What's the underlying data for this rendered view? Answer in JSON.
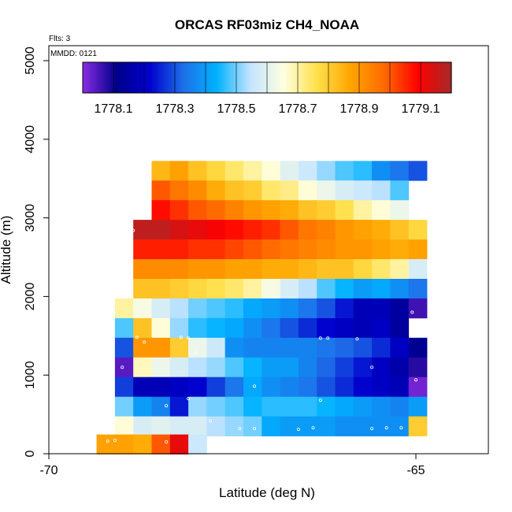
{
  "title": "ORCAS RF03miz CH4_NOAA",
  "flts_label": "Flts: 3",
  "mmdd_label": "MMDD: 0121",
  "chart_data": {
    "type": "heatmap",
    "title": "ORCAS RF03miz CH4_NOAA",
    "xlabel": "Latitude (deg N)",
    "ylabel": "Altitude (m)",
    "xlim": [
      -70,
      -64
    ],
    "ylim": [
      0,
      5200
    ],
    "x_ticks": [
      -70,
      -65
    ],
    "y_ticks": [
      0,
      1000,
      2000,
      3000,
      4000,
      5000
    ],
    "grid": false,
    "colorbar": {
      "min": 1778.0,
      "max": 1779.2,
      "ticks": [
        1778.1,
        1778.3,
        1778.5,
        1778.7,
        1778.9,
        1779.1
      ],
      "colors": [
        "#8B2BE2",
        "#00008B",
        "#0000CD",
        "#1E6FE8",
        "#00B2FF",
        "#C4E4FF",
        "#FFFFE0",
        "#FFE04A",
        "#FFA500",
        "#FF6A00",
        "#FF0000",
        "#A52A2A"
      ],
      "placement": "top"
    },
    "cells": [
      {
        "y": 3600,
        "x0": -68.6,
        "v": [
          1778.84,
          1778.88,
          1778.82,
          1778.78,
          1778.74,
          1778.7,
          1778.66,
          1778.6,
          1778.56,
          1778.52,
          1778.48,
          1778.46,
          1778.38,
          1778.34,
          1778.3
        ]
      },
      {
        "y": 3350,
        "x0": -68.6,
        "v": [
          1779.0,
          1778.96,
          1778.92,
          1778.86,
          1778.82,
          1778.8,
          1778.74,
          1778.72,
          1778.66,
          1778.62,
          1778.58,
          1778.56,
          1778.54,
          1778.48
        ]
      },
      {
        "y": 3100,
        "x0": -68.6,
        "v": [
          1779.08,
          1779.04,
          1779.0,
          1778.98,
          1778.94,
          1778.9,
          1778.88,
          1778.86,
          1778.82,
          1778.8,
          1778.76,
          1778.7,
          1778.66,
          1778.62
        ]
      },
      {
        "y": 2850,
        "x0": -68.85,
        "v": [
          1779.17,
          1779.17,
          1779.14,
          1779.12,
          1779.1,
          1779.08,
          1779.06,
          1779.04,
          1779.0,
          1778.96,
          1778.94,
          1778.9,
          1778.88,
          1778.86,
          1778.82,
          1778.78
        ]
      },
      {
        "y": 2600,
        "x0": -68.85,
        "v": [
          1779.06,
          1779.06,
          1779.06,
          1779.04,
          1779.04,
          1779.02,
          1779.0,
          1778.98,
          1778.96,
          1778.94,
          1778.92,
          1778.9,
          1778.9,
          1778.88,
          1778.86,
          1778.88
        ]
      },
      {
        "y": 2350,
        "x0": -68.85,
        "v": [
          1778.92,
          1778.92,
          1778.92,
          1778.9,
          1778.9,
          1778.88,
          1778.88,
          1778.86,
          1778.86,
          1778.84,
          1778.82,
          1778.82,
          1778.78,
          1778.74,
          1778.7,
          1778.58
        ]
      },
      {
        "y": 2100,
        "x0": -68.85,
        "v": [
          1778.82,
          1778.82,
          1778.8,
          1778.78,
          1778.76,
          1778.74,
          1778.7,
          1778.64,
          1778.58,
          1778.54,
          1778.48,
          1778.44,
          1778.4,
          1778.42,
          1778.38,
          1778.34
        ]
      },
      {
        "y": 1850,
        "x0": -69.1,
        "v": [
          1778.7,
          1778.64,
          1778.58,
          1778.54,
          1778.5,
          1778.48,
          1778.46,
          1778.42,
          1778.4,
          1778.38,
          1778.34,
          1778.3,
          1778.24,
          1778.18,
          1778.18,
          1778.14,
          1778.06
        ]
      },
      {
        "y": 1600,
        "x0": -69.1,
        "v": [
          1778.48,
          1778.82,
          1778.66,
          1778.52,
          1778.46,
          1778.44,
          1778.42,
          1778.38,
          1778.34,
          1778.3,
          1778.26,
          1778.22,
          1778.2,
          1778.18,
          1778.2,
          1778.14
        ]
      },
      {
        "y": 1350,
        "x0": -69.1,
        "v": [
          1778.3,
          1778.9,
          1778.9,
          1778.8,
          1778.62,
          1778.56,
          1778.38,
          1778.36,
          1778.36,
          1778.36,
          1778.36,
          1778.34,
          1778.32,
          1778.3,
          1778.26,
          1778.2,
          1778.12
        ]
      },
      {
        "y": 1100,
        "x0": -69.1,
        "v": [
          1778.04,
          1778.68,
          1778.62,
          1778.58,
          1778.54,
          1778.52,
          1778.48,
          1778.44,
          1778.4,
          1778.4,
          1778.36,
          1778.32,
          1778.28,
          1778.24,
          1778.2,
          1778.16,
          1778.08
        ]
      },
      {
        "y": 850,
        "x0": -69.1,
        "v": [
          1778.28,
          1778.18,
          1778.18,
          1778.2,
          1778.22,
          1778.28,
          1778.34,
          1778.42,
          1778.38,
          1778.36,
          1778.34,
          1778.3,
          1778.26,
          1778.22,
          1778.2,
          1778.18,
          1778.02
        ]
      },
      {
        "y": 600,
        "x0": -69.1,
        "v": [
          1778.5,
          1778.4,
          1778.36,
          1778.24,
          1778.52,
          1778.5,
          1778.48,
          1778.44,
          1778.46,
          1778.46,
          1778.46,
          1778.44,
          1778.42,
          1778.4,
          1778.38,
          1778.36,
          1778.4
        ]
      },
      {
        "y": 350,
        "x0": -69.1,
        "v": [
          1778.66,
          1778.58,
          1778.6,
          1778.58,
          1778.58,
          1778.54,
          1778.52,
          1778.5,
          1778.42,
          1778.4,
          1778.4,
          1778.4,
          1778.38,
          1778.38,
          1778.38,
          1778.38,
          1778.8
        ]
      },
      {
        "y": 120,
        "x0": -69.35,
        "v": [
          1778.88,
          1778.88,
          1778.86,
          1779.0,
          1779.12,
          1778.56
        ]
      }
    ],
    "flight_points": [
      [
        -68.6,
        3740
      ],
      [
        -64.6,
        3580
      ],
      [
        -68.85,
        2840
      ],
      [
        -64.3,
        2690
      ],
      [
        -65.05,
        1800
      ],
      [
        -68.8,
        1480
      ],
      [
        -68.7,
        1420
      ],
      [
        -68.2,
        1480
      ],
      [
        -68.1,
        1470
      ],
      [
        -68.0,
        1280
      ],
      [
        -66.3,
        1470
      ],
      [
        -66.2,
        1470
      ],
      [
        -65.8,
        1460
      ],
      [
        -65.6,
        1100
      ],
      [
        -69.0,
        1100
      ],
      [
        -65.0,
        940
      ],
      [
        -67.2,
        860
      ],
      [
        -66.3,
        680
      ],
      [
        -68.4,
        610
      ],
      [
        -68.1,
        700
      ],
      [
        -67.8,
        420
      ],
      [
        -67.4,
        320
      ],
      [
        -67.2,
        320
      ],
      [
        -66.6,
        310
      ],
      [
        -66.4,
        330
      ],
      [
        -65.6,
        320
      ],
      [
        -65.4,
        330
      ],
      [
        -65.2,
        330
      ],
      [
        -69.2,
        160
      ],
      [
        -69.1,
        170
      ],
      [
        -68.4,
        150
      ]
    ]
  }
}
